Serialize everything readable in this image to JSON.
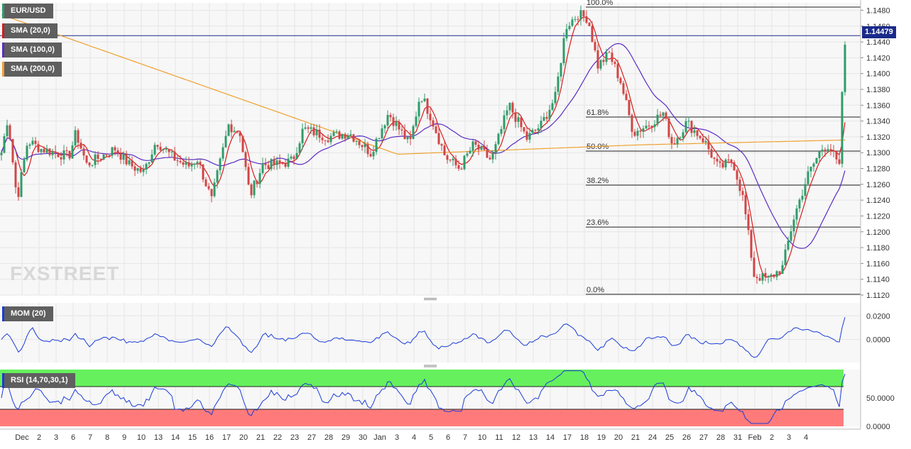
{
  "chart_data": {
    "type": "candlestick",
    "symbol": "EUR/USD",
    "last_price": "1.14479",
    "indicators": [
      {
        "label": "SMA (20,0)",
        "color": "#d81b1b"
      },
      {
        "label": "SMA (100,0)",
        "color": "#5b2bc4"
      },
      {
        "label": "SMA (200,0)",
        "color": "#f0a030"
      }
    ],
    "price_axis": {
      "range": [
        1.112,
        1.1484
      ],
      "ticks": [
        "1.1480",
        "1.1460",
        "1.1440",
        "1.1420",
        "1.1400",
        "1.1380",
        "1.1360",
        "1.1340",
        "1.1320",
        "1.1300",
        "1.1280",
        "1.1260",
        "1.1240",
        "1.1220",
        "1.1200",
        "1.1180",
        "1.1160",
        "1.1140",
        "1.1120"
      ]
    },
    "time_axis": {
      "ticks": [
        "Dec",
        "2",
        "3",
        "6",
        "7",
        "8",
        "9",
        "10",
        "13",
        "14",
        "15",
        "16",
        "17",
        "20",
        "21",
        "22",
        "23",
        "27",
        "28",
        "29",
        "30",
        "Jan",
        "3",
        "4",
        "5",
        "6",
        "7",
        "10",
        "11",
        "12",
        "13",
        "14",
        "17",
        "18",
        "19",
        "20",
        "21",
        "24",
        "25",
        "26",
        "27",
        "28",
        "31",
        "Feb",
        "2",
        "3",
        "4"
      ]
    },
    "fibonacci": [
      {
        "label": "100.0%",
        "price": 1.1484
      },
      {
        "label": "61.8%",
        "price": 1.1345
      },
      {
        "label": "50.0%",
        "price": 1.1302
      },
      {
        "label": "38.2%",
        "price": 1.1259
      },
      {
        "label": "23.6%",
        "price": 1.1206
      },
      {
        "label": "0.0%",
        "price": 1.1121
      }
    ],
    "anchors": [
      [
        0,
        1.13
      ],
      [
        9,
        1.1345
      ],
      [
        22,
        1.124
      ],
      [
        37,
        1.1315
      ],
      [
        55,
        1.1305
      ],
      [
        75,
        1.13
      ],
      [
        95,
        1.1295
      ],
      [
        105,
        1.1325
      ],
      [
        120,
        1.1285
      ],
      [
        140,
        1.1295
      ],
      [
        160,
        1.1305
      ],
      [
        180,
        1.1285
      ],
      [
        200,
        1.1275
      ],
      [
        218,
        1.1315
      ],
      [
        240,
        1.1295
      ],
      [
        262,
        1.1282
      ],
      [
        276,
        1.1292
      ],
      [
        296,
        1.124
      ],
      [
        320,
        1.1335
      ],
      [
        336,
        1.1325
      ],
      [
        350,
        1.1245
      ],
      [
        368,
        1.1285
      ],
      [
        390,
        1.1285
      ],
      [
        410,
        1.129
      ],
      [
        425,
        1.133
      ],
      [
        460,
        1.132
      ],
      [
        490,
        1.1325
      ],
      [
        520,
        1.13
      ],
      [
        545,
        1.135
      ],
      [
        575,
        1.131
      ],
      [
        590,
        1.1375
      ],
      [
        605,
        1.1345
      ],
      [
        625,
        1.1295
      ],
      [
        645,
        1.128
      ],
      [
        665,
        1.131
      ],
      [
        690,
        1.129
      ],
      [
        715,
        1.136
      ],
      [
        740,
        1.1318
      ],
      [
        760,
        1.1335
      ],
      [
        780,
        1.137
      ],
      [
        795,
        1.146
      ],
      [
        812,
        1.1475
      ],
      [
        826,
        1.147
      ],
      [
        840,
        1.141
      ],
      [
        856,
        1.1425
      ],
      [
        872,
        1.139
      ],
      [
        890,
        1.1325
      ],
      [
        910,
        1.1335
      ],
      [
        932,
        1.135
      ],
      [
        945,
        1.131
      ],
      [
        965,
        1.1338
      ],
      [
        990,
        1.1315
      ],
      [
        1010,
        1.128
      ],
      [
        1030,
        1.129
      ],
      [
        1045,
        1.124
      ],
      [
        1060,
        1.1145
      ],
      [
        1080,
        1.114
      ],
      [
        1100,
        1.1155
      ],
      [
        1115,
        1.1215
      ],
      [
        1135,
        1.127
      ],
      [
        1155,
        1.1305
      ],
      [
        1165,
        1.131
      ],
      [
        1180,
        1.128
      ],
      [
        1186,
        1.1425
      ],
      [
        1190,
        1.1448
      ]
    ],
    "mom": {
      "label": "MOM (20)",
      "ticks": [
        "0.0200",
        "0.0000"
      ],
      "range": [
        -0.0195,
        0.031
      ]
    },
    "rsi": {
      "label": "RSI (14,70,30,1)",
      "ticks": [
        "50.0000",
        "0.0000"
      ],
      "range": [
        0,
        100
      ],
      "overbought": 70,
      "oversold": 30
    },
    "watermark": "FXSTREET"
  }
}
